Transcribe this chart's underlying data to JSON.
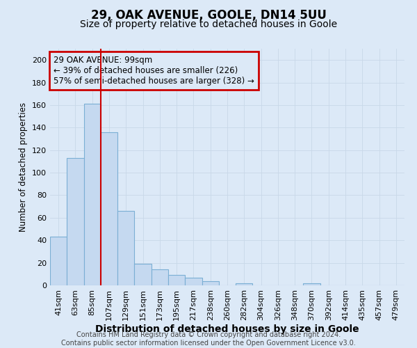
{
  "title": "29, OAK AVENUE, GOOLE, DN14 5UU",
  "subtitle": "Size of property relative to detached houses in Goole",
  "xlabel": "Distribution of detached houses by size in Goole",
  "ylabel": "Number of detached properties",
  "bar_values": [
    43,
    113,
    161,
    136,
    66,
    19,
    14,
    9,
    7,
    4,
    0,
    2,
    0,
    0,
    0,
    2,
    0,
    0,
    0,
    0,
    0
  ],
  "bar_labels": [
    "41sqm",
    "63sqm",
    "85sqm",
    "107sqm",
    "129sqm",
    "151sqm",
    "173sqm",
    "195sqm",
    "217sqm",
    "238sqm",
    "260sqm",
    "282sqm",
    "304sqm",
    "326sqm",
    "348sqm",
    "370sqm",
    "392sqm",
    "414sqm",
    "435sqm",
    "457sqm",
    "479sqm"
  ],
  "bar_color": "#c5d9f0",
  "bar_edge_color": "#7bafd4",
  "vline_color": "#cc0000",
  "annotation_line1": "29 OAK AVENUE: 99sqm",
  "annotation_line2": "← 39% of detached houses are smaller (226)",
  "annotation_line3": "57% of semi-detached houses are larger (328) →",
  "annotation_box_color": "#cc0000",
  "annotation_bg_color": "#dce9f7",
  "grid_color": "#c8d8e8",
  "background_color": "#dce9f7",
  "plot_bg_color": "#dce9f7",
  "footer_text": "Contains HM Land Registry data © Crown copyright and database right 2024.\nContains public sector information licensed under the Open Government Licence v3.0.",
  "ylim": [
    0,
    210
  ],
  "yticks": [
    0,
    20,
    40,
    60,
    80,
    100,
    120,
    140,
    160,
    180,
    200
  ],
  "title_fontsize": 12,
  "subtitle_fontsize": 10,
  "xlabel_fontsize": 10,
  "ylabel_fontsize": 8.5,
  "tick_fontsize": 8,
  "annot_fontsize": 8.5,
  "footer_fontsize": 7
}
